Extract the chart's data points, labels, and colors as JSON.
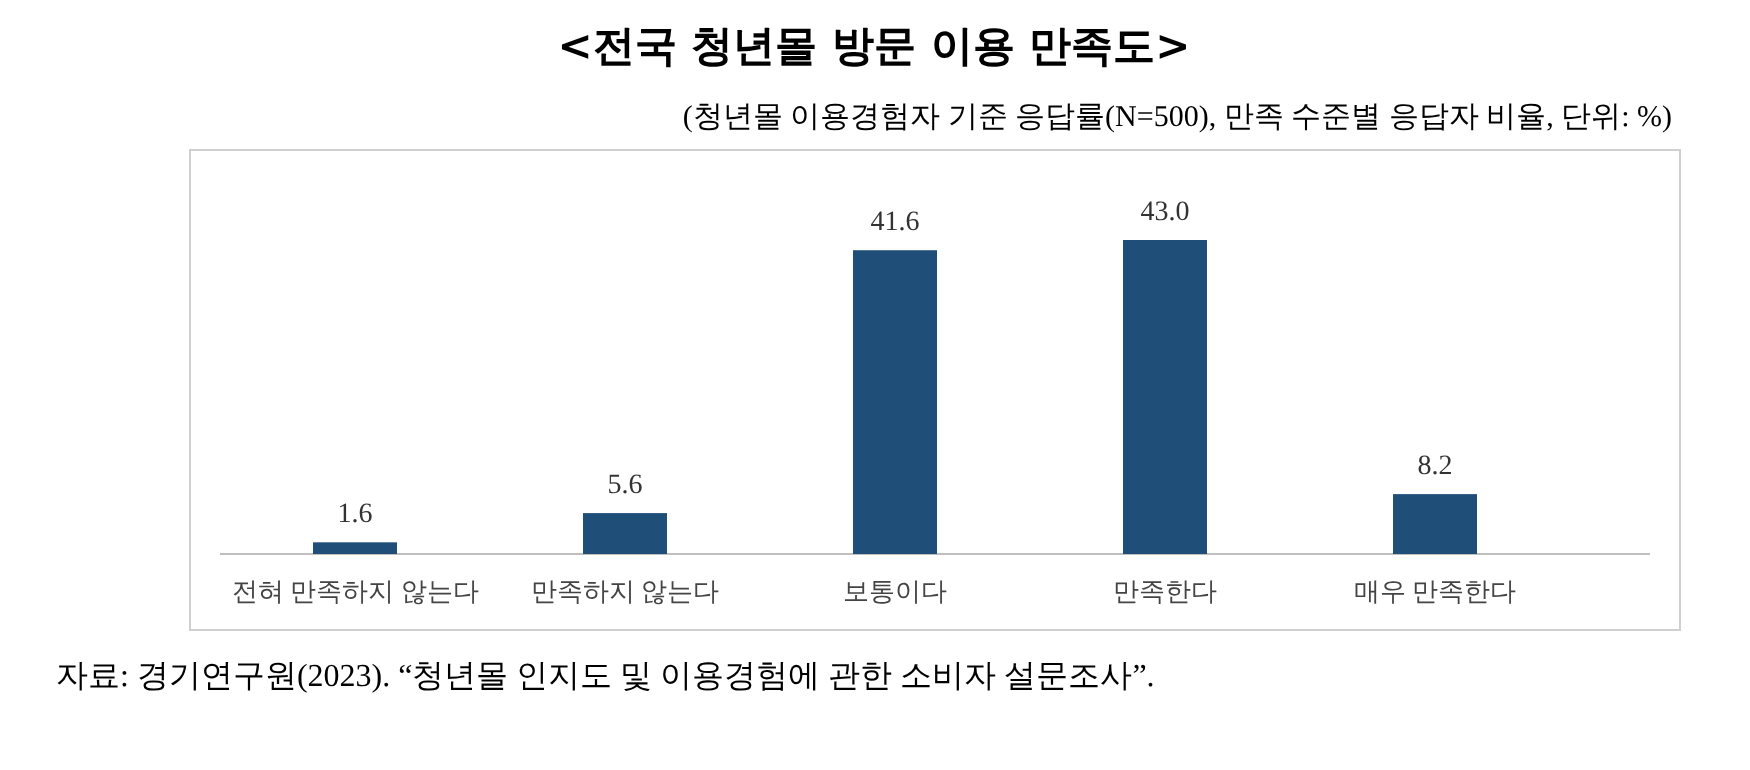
{
  "chart_data": {
    "type": "bar",
    "title": "<전국 청년몰 방문 이용 만족도>",
    "subtitle": "(청년몰 이용경험자 기준 응답률(N=500), 만족 수준별 응답자 비율, 단위: %)",
    "categories": [
      "전혀 만족하지 않는다",
      "만족하지 않는다",
      "보통이다",
      "만족한다",
      "매우 만족한다"
    ],
    "values": [
      1.6,
      5.6,
      41.6,
      43.0,
      8.2
    ],
    "value_labels": [
      "1.6",
      "5.6",
      "41.6",
      "43.0",
      "8.2"
    ],
    "color": "#1f4e79",
    "annotations": [
      "자료: 경기연구원(2023). “청년몰 인지도 및 이용경험에 관한 소비자 설문조사”."
    ]
  }
}
